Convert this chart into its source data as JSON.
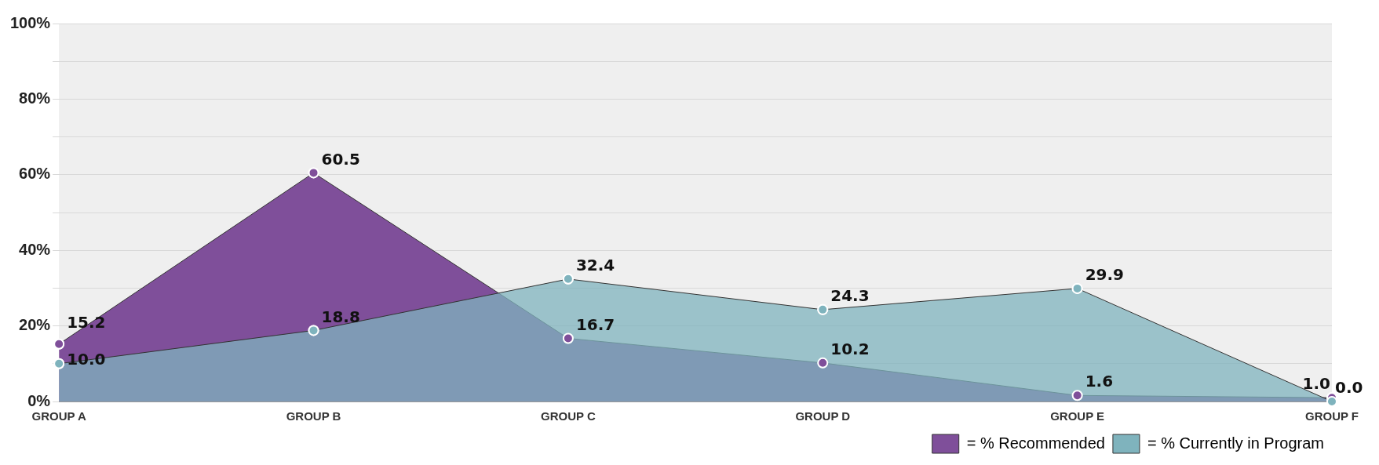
{
  "chart_data": {
    "type": "area",
    "categories": [
      "GROUP A",
      "GROUP B",
      "GROUP C",
      "GROUP D",
      "GROUP E",
      "GROUP F"
    ],
    "series": [
      {
        "name": "= % Recommended",
        "color": "#7f4f9a",
        "values": [
          15.2,
          60.5,
          16.7,
          10.2,
          1.6,
          1.0
        ],
        "value_labels": [
          "15.2",
          "60.5",
          "16.7",
          "10.2",
          "1.6",
          "1.0"
        ]
      },
      {
        "name": "= % Currently in Program",
        "color": "#7fb3bd",
        "values": [
          10.0,
          18.8,
          32.4,
          24.3,
          29.9,
          0.0
        ],
        "value_labels": [
          "10.0",
          "18.8",
          "32.4",
          "24.3",
          "29.9",
          "0.0"
        ]
      }
    ],
    "ylim": [
      0,
      100
    ],
    "yticks": [
      {
        "value": 0,
        "label": "0%"
      },
      {
        "value": 10,
        "label": null
      },
      {
        "value": 20,
        "label": "20%"
      },
      {
        "value": 30,
        "label": null
      },
      {
        "value": 40,
        "label": "40%"
      },
      {
        "value": 50,
        "label": null
      },
      {
        "value": 60,
        "label": "60%"
      },
      {
        "value": 70,
        "label": null
      },
      {
        "value": 80,
        "label": "80%"
      },
      {
        "value": 90,
        "label": null
      },
      {
        "value": 100,
        "label": "100%"
      }
    ],
    "grid": "y",
    "marker": "circle",
    "legend": "bottom right"
  }
}
